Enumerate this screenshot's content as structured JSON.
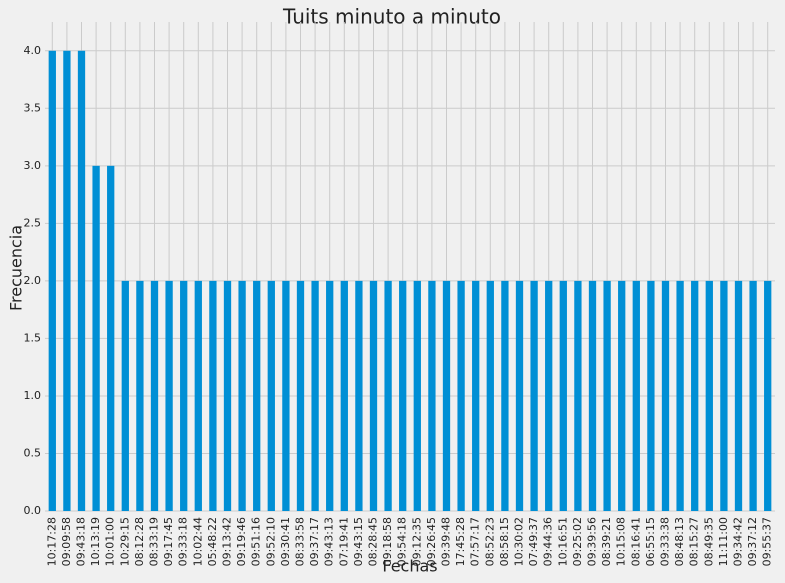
{
  "chart_data": {
    "type": "bar",
    "title": "Tuits minuto a minuto",
    "x_label": "Fechas",
    "y_label": "Frecuencia",
    "categories": [
      "10:17:28",
      "09:09:58",
      "09:43:18",
      "10:13:19",
      "10:01:00",
      "10:29:15",
      "08:12:28",
      "08:33:19",
      "09:17:45",
      "09:33:18",
      "10:02:44",
      "05:48:22",
      "09:13:42",
      "09:19:46",
      "09:51:16",
      "09:52:10",
      "09:30:41",
      "08:33:58",
      "09:37:17",
      "09:43:13",
      "07:19:41",
      "09:43:15",
      "08:28:45",
      "09:18:58",
      "09:54:18",
      "09:12:35",
      "09:26:45",
      "09:39:48",
      "17:45:28",
      "07:57:17",
      "08:52:23",
      "08:58:15",
      "10:30:02",
      "07:49:37",
      "09:44:36",
      "10:16:51",
      "09:25:02",
      "09:39:56",
      "08:39:21",
      "10:15:08",
      "08:16:41",
      "06:55:15",
      "09:33:38",
      "08:48:13",
      "08:15:27",
      "08:49:35",
      "11:11:00",
      "09:34:42",
      "09:37:12",
      "09:55:37"
    ],
    "values": [
      4,
      4,
      4,
      3,
      3,
      2,
      2,
      2,
      2,
      2,
      2,
      2,
      2,
      2,
      2,
      2,
      2,
      2,
      2,
      2,
      2,
      2,
      2,
      2,
      2,
      2,
      2,
      2,
      2,
      2,
      2,
      2,
      2,
      2,
      2,
      2,
      2,
      2,
      2,
      2,
      2,
      2,
      2,
      2,
      2,
      2,
      2,
      2,
      2,
      2
    ],
    "color": "#008fd5",
    "ylim": [
      0,
      4.25
    ],
    "yticks": [
      {
        "value": 0,
        "label": "0.0"
      },
      {
        "value": 0.5,
        "label": "0.5"
      },
      {
        "value": 1,
        "label": "1.0"
      },
      {
        "value": 1.5,
        "label": "1.5"
      },
      {
        "value": 2,
        "label": "2.0"
      },
      {
        "value": 2.5,
        "label": "2.5"
      },
      {
        "value": 3,
        "label": "3.0"
      },
      {
        "value": 3.5,
        "label": "3.5"
      },
      {
        "value": 4,
        "label": "4.0"
      }
    ],
    "grid": true
  }
}
